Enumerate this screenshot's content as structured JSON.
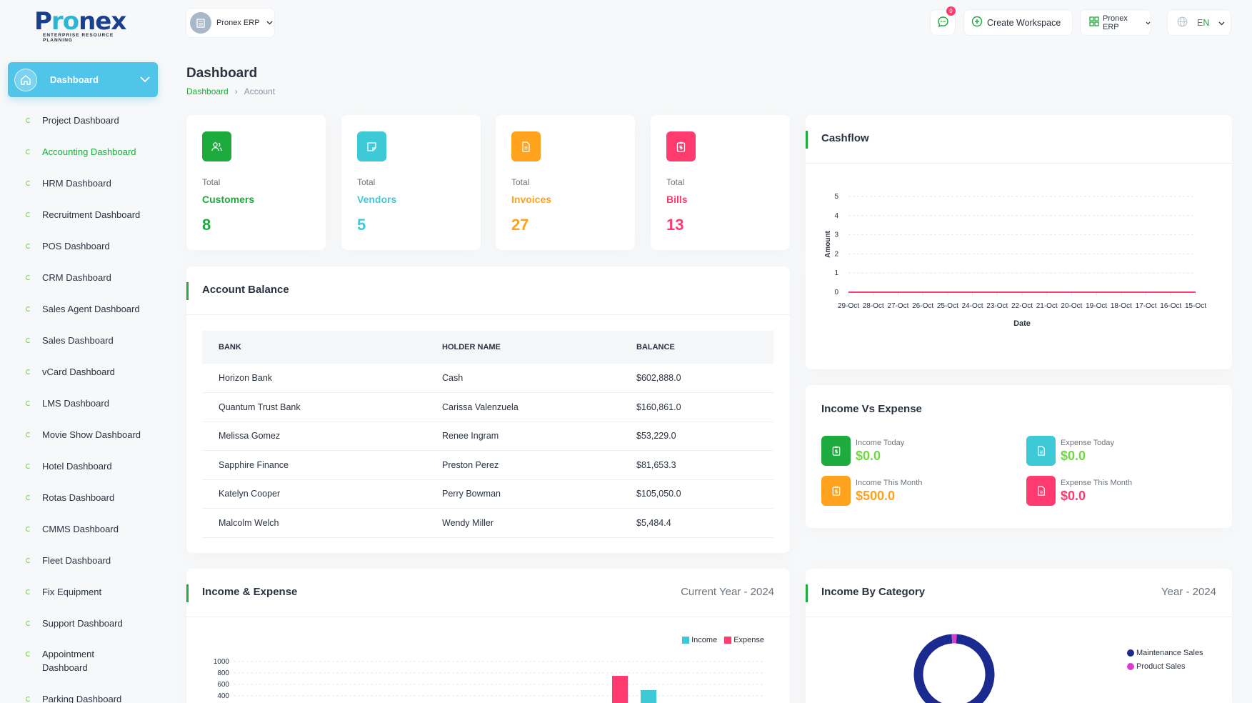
{
  "brand": {
    "logo_p": "P",
    "logo_ro": "ro",
    "logo_nex": "nex",
    "logo_sub": "ENTERPRISE RESOURCE PLANNING"
  },
  "topbar": {
    "workspace": "Pronex ERP",
    "notif_count": "0",
    "create_workspace": "Create Workspace",
    "apps": "Pronex ERP",
    "language": "EN"
  },
  "sidebar": {
    "main": "Dashboard",
    "items": [
      {
        "label": "Project Dashboard"
      },
      {
        "label": "Accounting Dashboard"
      },
      {
        "label": "HRM Dashboard"
      },
      {
        "label": "Recruitment Dashboard"
      },
      {
        "label": "POS Dashboard"
      },
      {
        "label": "CRM Dashboard"
      },
      {
        "label": "Sales Agent Dashboard"
      },
      {
        "label": "Sales Dashboard"
      },
      {
        "label": "vCard Dashboard"
      },
      {
        "label": "LMS Dashboard"
      },
      {
        "label": "Movie Show Dashboard"
      },
      {
        "label": "Hotel Dashboard"
      },
      {
        "label": "Rotas Dashboard"
      },
      {
        "label": "CMMS Dashboard"
      },
      {
        "label": "Fleet Dashboard"
      },
      {
        "label": "Fix Equipment"
      },
      {
        "label": "Support Dashboard"
      },
      {
        "label": "Appointment Dashboard"
      },
      {
        "label": "Parking Dashboard"
      }
    ]
  },
  "page": {
    "title": "Dashboard",
    "crumb_home": "Dashboard",
    "crumb_current": "Account"
  },
  "stats": [
    {
      "total": "Total",
      "label": "Customers",
      "value": "8",
      "color": "#1cab3c"
    },
    {
      "total": "Total",
      "label": "Vendors",
      "value": "5",
      "color": "#3ec9d6"
    },
    {
      "total": "Total",
      "label": "Invoices",
      "value": "27",
      "color": "#ffa21d"
    },
    {
      "total": "Total",
      "label": "Bills",
      "value": "13",
      "color": "#ff3a6e"
    }
  ],
  "account_balance": {
    "title": "Account Balance",
    "headers": [
      "BANK",
      "HOLDER NAME",
      "BALANCE"
    ],
    "rows": [
      [
        "Horizon Bank",
        "Cash",
        "$602,888.0"
      ],
      [
        "Quantum Trust Bank",
        "Carissa Valenzuela",
        "$160,861.0"
      ],
      [
        "Melissa Gomez",
        "Renee Ingram",
        "$53,229.0"
      ],
      [
        "Sapphire Finance",
        "Preston Perez",
        "$81,653.3"
      ],
      [
        "Katelyn Cooper",
        "Perry Bowman",
        "$105,050.0"
      ],
      [
        "Malcolm Welch",
        "Wendy Miller",
        "$5,484.4"
      ]
    ]
  },
  "income_vs_expense": {
    "title": "Income Vs Expense",
    "items": [
      {
        "label": "Income Today",
        "value": "$0.0",
        "color": "#6fd943"
      },
      {
        "label": "Expense Today",
        "value": "$0.0",
        "color": "#6fd943"
      },
      {
        "label": "Income This Month",
        "value": "$500.0",
        "color": "#ffa21d"
      },
      {
        "label": "Expense This Month",
        "value": "$0.0",
        "color": "#ff3a6e"
      }
    ]
  },
  "income_expense_card": {
    "title": "Income & Expense",
    "period": "Current Year - 2024"
  },
  "income_category_card": {
    "title": "Income By Category",
    "period": "Year - 2024"
  },
  "chart_data": [
    {
      "type": "line",
      "title": "Cashflow",
      "xlabel": "Date",
      "ylabel": "Amount",
      "x": [
        "29-Oct",
        "28-Oct",
        "27-Oct",
        "26-Oct",
        "25-Oct",
        "24-Oct",
        "23-Oct",
        "22-Oct",
        "21-Oct",
        "20-Oct",
        "19-Oct",
        "18-Oct",
        "17-Oct",
        "16-Oct",
        "15-Oct"
      ],
      "y_ticks": [
        0,
        1,
        2,
        3,
        4,
        5
      ],
      "ylim": [
        0,
        5
      ],
      "series": [
        {
          "values": [
            0,
            0,
            0,
            0,
            0,
            0,
            0,
            0,
            0,
            0,
            0,
            0,
            0,
            0,
            0
          ],
          "color": "#ff3a6e"
        }
      ],
      "grid": true
    },
    {
      "type": "bar",
      "title": "Income & Expense",
      "y_ticks": [
        400,
        600,
        800,
        1000
      ],
      "ylim": [
        0,
        1000
      ],
      "series": [
        {
          "name": "Income",
          "color": "#3ec9d6",
          "visible_bar_value": 500
        },
        {
          "name": "Expense",
          "color": "#ff3a6e",
          "visible_bar_value": 750
        }
      ],
      "legend": "top-right"
    },
    {
      "type": "pie",
      "title": "Income By Category",
      "labels": [
        "Maintenance Sales",
        "Product Sales"
      ],
      "values": [
        98,
        2
      ],
      "colors": [
        "#1b2a8f",
        "#d63ecf"
      ],
      "legend": "right"
    }
  ]
}
